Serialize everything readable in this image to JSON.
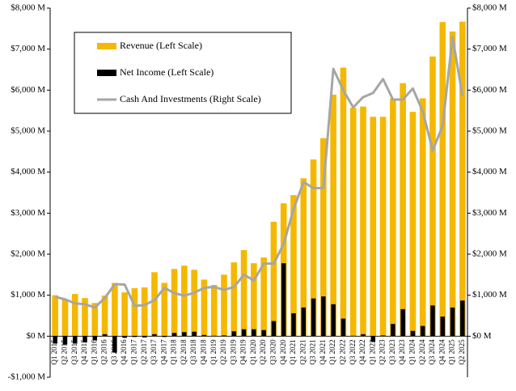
{
  "chart_data": {
    "type": "bar",
    "categories": [
      "Q1 2015",
      "Q2 2015",
      "Q3 2015",
      "Q4 2015",
      "Q1 2016",
      "Q2 2016",
      "Q3 2016",
      "Q4 2016",
      "Q1 2017",
      "Q2 2017",
      "Q3 2017",
      "Q4 2017",
      "Q1 2018",
      "Q2 2018",
      "Q3 2018",
      "Q4 2018",
      "Q1 2019",
      "Q2 2019",
      "Q3 2019",
      "Q4 2019",
      "Q1 2020",
      "Q2 2020",
      "Q3 2020",
      "Q4 2020",
      "Q1 2021",
      "Q2 2021",
      "Q3 2021",
      "Q4 2021",
      "Q1 2022",
      "Q2 2022",
      "Q3 2022",
      "Q4 2022",
      "Q1 2023",
      "Q2 2023",
      "Q3 2023",
      "Q4 2023",
      "Q1 2024",
      "Q2 2024",
      "Q3 2024",
      "Q4 2024",
      "Q1 2025",
      "Q2 2025"
    ],
    "series": [
      {
        "name": "Revenue (Left Scale)",
        "type": "bar",
        "color": "#f5b800",
        "values": [
          1000,
          900,
          1030,
          930,
          810,
          990,
          1300,
          1070,
          1170,
          1190,
          1560,
          1300,
          1640,
          1720,
          1620,
          1380,
          1250,
          1500,
          1800,
          2100,
          1780,
          1920,
          2790,
          3240,
          3440,
          3850,
          4310,
          4830,
          5890,
          6550,
          5570,
          5600,
          5350,
          5350,
          5800,
          6170,
          5470,
          5800,
          6820,
          7660,
          7430,
          7670
        ]
      },
      {
        "name": "Net Income (Left Scale)",
        "type": "bar",
        "color": "#000000",
        "values": [
          -180,
          -200,
          -180,
          -150,
          -100,
          50,
          -400,
          -40,
          -20,
          -30,
          50,
          -20,
          80,
          100,
          110,
          30,
          10,
          20,
          120,
          170,
          170,
          150,
          370,
          1780,
          560,
          700,
          920,
          970,
          780,
          430,
          10,
          50,
          -140,
          20,
          300,
          660,
          130,
          250,
          750,
          480,
          700,
          870
        ]
      },
      {
        "name": "Cash And Investments (Right Scale)",
        "type": "line",
        "axis": "y2",
        "color": "#a6a6a6",
        "values": [
          960,
          900,
          800,
          780,
          700,
          930,
          1270,
          1260,
          740,
          760,
          880,
          1180,
          1050,
          990,
          1060,
          1180,
          1200,
          1130,
          1200,
          1500,
          1360,
          1770,
          1770,
          2250,
          3100,
          3760,
          3610,
          3610,
          6520,
          6000,
          5580,
          5830,
          5930,
          6270,
          5770,
          5770,
          6040,
          5480,
          4530,
          5130,
          7300,
          5850
        ]
      }
    ],
    "ylim": [
      -1000,
      8000
    ],
    "yticks": [
      {
        "value": -1000,
        "label": "-$1,000 M"
      },
      {
        "value": 0,
        "label": "$0 M"
      },
      {
        "value": 1000,
        "label": "$1,000 M"
      },
      {
        "value": 2000,
        "label": "$2,000 M"
      },
      {
        "value": 3000,
        "label": "$3,000 M"
      },
      {
        "value": 4000,
        "label": "$4,000 M"
      },
      {
        "value": 5000,
        "label": "$5,000 M"
      },
      {
        "value": 6000,
        "label": "$6,000 M"
      },
      {
        "value": 7000,
        "label": "$7,000 M"
      },
      {
        "value": 8000,
        "label": "$8,000 M"
      }
    ],
    "y2lim": [
      -1000,
      8000
    ],
    "y2ticks": [
      {
        "value": 0,
        "label": "$0 M"
      },
      {
        "value": 1000,
        "label": "$1,000 M"
      },
      {
        "value": 2000,
        "label": "$2,000 M"
      },
      {
        "value": 3000,
        "label": "$3,000 M"
      },
      {
        "value": 4000,
        "label": "$4,000 M"
      },
      {
        "value": 5000,
        "label": "$5,000 M"
      },
      {
        "value": 6000,
        "label": "$6,000 M"
      },
      {
        "value": 7000,
        "label": "$7,000 M"
      },
      {
        "value": 8000,
        "label": "$8,000 M"
      }
    ],
    "legend": "upper left"
  }
}
